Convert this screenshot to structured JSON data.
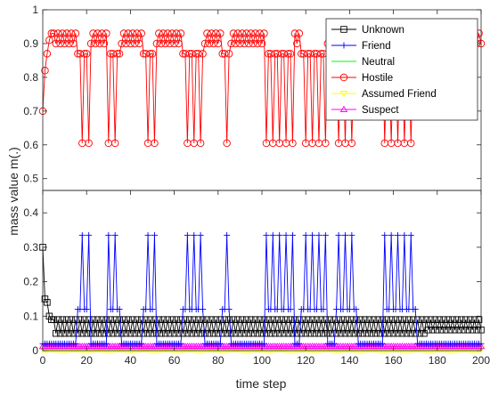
{
  "chart_data": {
    "type": "line",
    "xlabel": "time step",
    "ylabel": "mass value m(.)",
    "xlim": [
      0,
      200
    ],
    "ylim_top": [
      0.465,
      1.0
    ],
    "ylim_bottom": [
      0,
      0.465
    ],
    "x_ticks": [
      "0",
      "20",
      "40",
      "60",
      "80",
      "100",
      "120",
      "140",
      "160",
      "180",
      "200"
    ],
    "y_ticks_top": [
      "0.5",
      "0.6",
      "0.7",
      "0.8",
      "0.9",
      "1"
    ],
    "y_ticks_bottom": [
      "0",
      "0.1",
      "0.2",
      "0.3",
      "0.4"
    ],
    "grid": false,
    "legend_position": "top-right",
    "hostile_spikes": [
      16,
      17,
      18,
      19,
      20,
      21,
      30,
      31,
      32,
      33,
      34,
      35,
      46,
      47,
      48,
      49,
      50,
      51,
      64,
      65,
      66,
      67,
      68,
      69,
      70,
      71,
      72,
      73,
      82,
      83,
      84,
      85,
      102,
      103,
      104,
      105,
      106,
      107,
      108,
      109,
      110,
      111,
      112,
      113,
      114,
      118,
      119,
      120,
      121,
      122,
      123,
      124,
      125,
      126,
      127,
      128,
      129,
      134,
      135,
      136,
      137,
      138,
      139,
      140,
      141,
      142,
      143,
      156,
      157,
      158,
      159,
      160,
      161,
      162,
      163,
      164,
      165,
      166,
      167,
      168,
      169,
      170
    ],
    "friend_spikes": [
      16,
      17,
      18,
      19,
      20,
      21,
      30,
      31,
      32,
      33,
      34,
      35,
      46,
      47,
      48,
      49,
      50,
      51,
      64,
      65,
      66,
      67,
      68,
      69,
      70,
      71,
      72,
      73,
      82,
      83,
      84,
      85,
      102,
      103,
      104,
      105,
      106,
      107,
      108,
      109,
      110,
      111,
      112,
      113,
      114,
      118,
      119,
      120,
      121,
      122,
      123,
      124,
      125,
      126,
      127,
      128,
      129,
      134,
      135,
      136,
      137,
      138,
      139,
      140,
      141,
      142,
      143,
      156,
      157,
      158,
      159,
      160,
      161,
      162,
      163,
      164,
      165,
      166,
      167,
      168,
      169,
      170
    ],
    "series": [
      {
        "name": "Unknown",
        "color": "#000000",
        "marker": "square",
        "y_start": [
          0.3,
          0.15,
          0.14,
          0.1,
          0.09
        ],
        "y_base": 0.09,
        "y_alt": 0.05,
        "y_end": 0.09
      },
      {
        "name": "Friend",
        "color": "#0000ff",
        "marker": "plus",
        "y_base": 0.02,
        "y_spike": 0.335,
        "y_near": 0.12
      },
      {
        "name": "Neutral",
        "color": "#00ff00",
        "marker": "none",
        "y_base": 0.005
      },
      {
        "name": "Hostile",
        "color": "#ff0000",
        "marker": "circle",
        "y_start": [
          0.7,
          0.82,
          0.87,
          0.91,
          0.93
        ],
        "y_base": 0.93,
        "y_alt": 0.9,
        "y_dip": 0.605,
        "y_mid": 0.87
      },
      {
        "name": "Assumed Friend",
        "color": "#ffff00",
        "marker": "triangle-down",
        "y_base": 0.004
      },
      {
        "name": "Suspect",
        "color": "#ff00ff",
        "marker": "triangle-up",
        "y_base": 0.012
      }
    ]
  }
}
